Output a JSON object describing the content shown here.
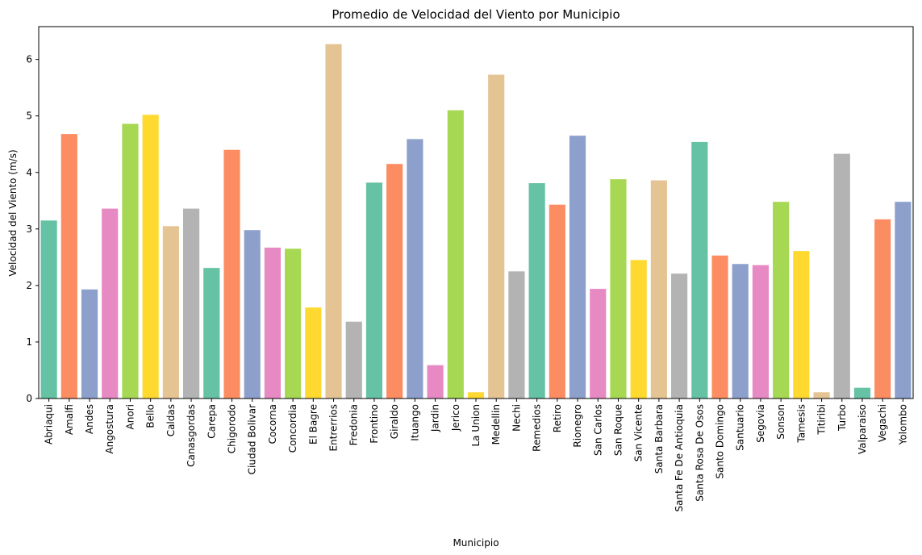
{
  "chart_data": {
    "type": "bar",
    "title": "Promedio de Velocidad del Viento por Municipio",
    "xlabel": "Municipio",
    "ylabel": "Velocidad del Viento (m/s)",
    "ylim": [
      0,
      6.58
    ],
    "yticks": [
      0,
      1,
      2,
      3,
      4,
      5,
      6
    ],
    "grid": false,
    "categories": [
      "Abriaqui",
      "Amalfi",
      "Andes",
      "Angostura",
      "Anori",
      "Bello",
      "Caldas",
      "Canasgordas",
      "Carepa",
      "Chigorodo",
      "Ciudad Bolivar",
      "Cocorna",
      "Concordia",
      "El Bagre",
      "Entrerrios",
      "Fredonia",
      "Frontino",
      "Giraldo",
      "Ituango",
      "Jardin",
      "Jerico",
      "La Union",
      "Medellin",
      "Nechi",
      "Remedios",
      "Retiro",
      "Rionegro",
      "San Carlos",
      "San Roque",
      "San Vicente",
      "Santa Barbara",
      "Santa Fe De Antioquia",
      "Santa Rosa De Osos",
      "Santo Domingo",
      "Santuario",
      "Segovia",
      "Sonson",
      "Tamesis",
      "Titiribi",
      "Turbo",
      "Valparaiso",
      "Vegachi",
      "Yolombo"
    ],
    "values": [
      3.15,
      4.68,
      1.93,
      3.36,
      4.86,
      5.02,
      3.05,
      3.36,
      2.31,
      4.4,
      2.98,
      2.67,
      2.65,
      1.61,
      6.27,
      1.36,
      3.82,
      4.15,
      4.59,
      0.59,
      5.1,
      0.11,
      5.73,
      2.25,
      3.81,
      3.43,
      4.65,
      1.94,
      3.88,
      2.45,
      3.86,
      2.21,
      4.54,
      2.53,
      2.38,
      2.36,
      3.48,
      2.61,
      0.11,
      4.33,
      0.19,
      3.17,
      3.48
    ],
    "palette": [
      "#66c2a5",
      "#fc8d62",
      "#8da0cb",
      "#e78ac3",
      "#a6d854",
      "#ffd92f",
      "#e5c494",
      "#b3b3b3"
    ]
  }
}
